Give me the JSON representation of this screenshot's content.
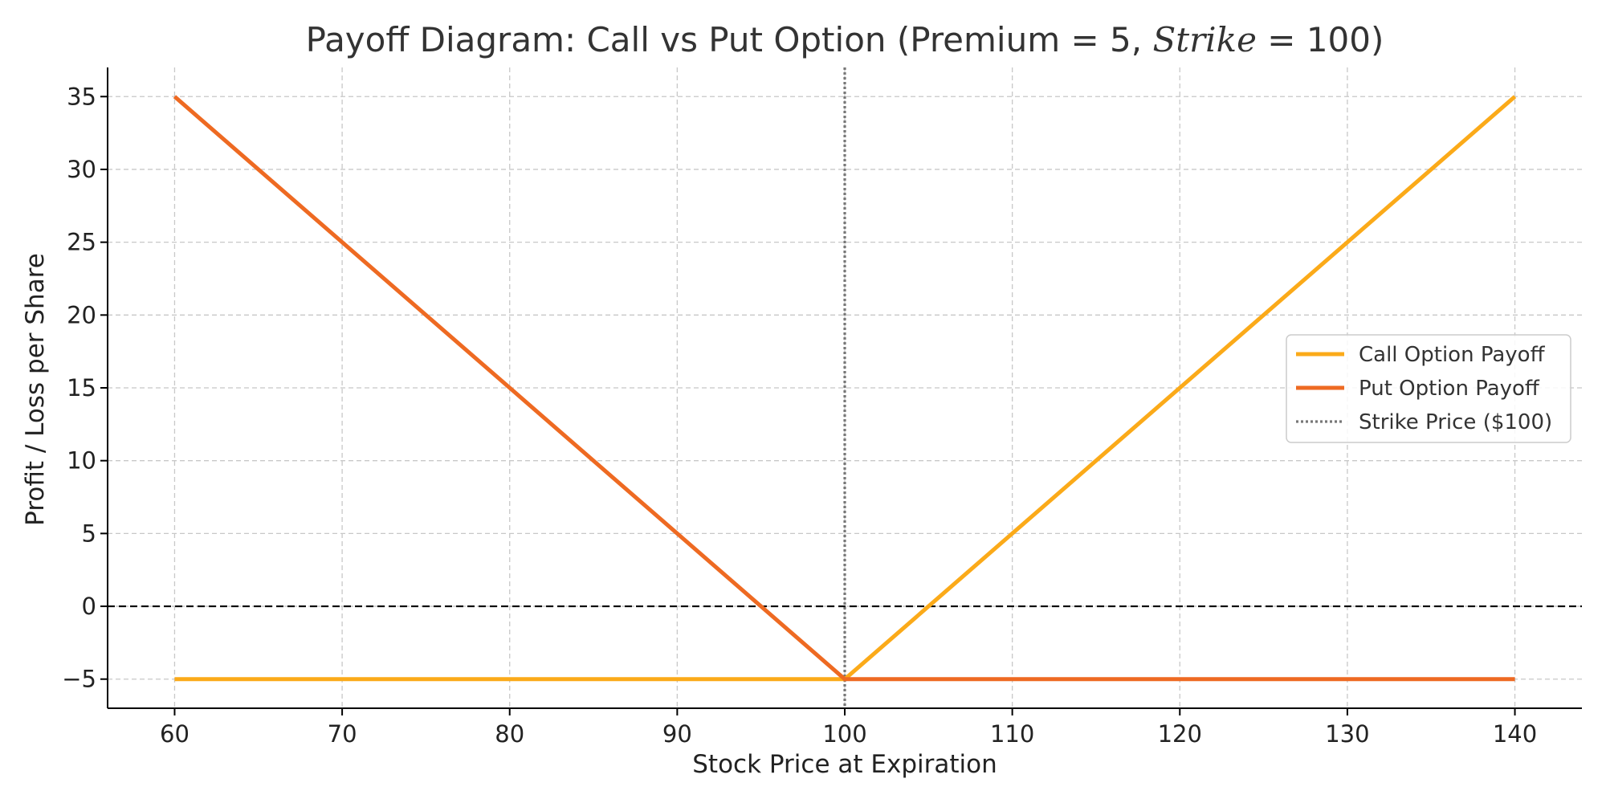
{
  "chart_data": {
    "type": "line",
    "title": "Payoff Diagram: Call vs Put Option (Premium = 5,",
    "title_math": "Strike",
    "title_suffix": " = 100)",
    "xlabel": "Stock Price at Expiration",
    "ylabel": "Profit / Loss per Share",
    "xlim": [
      56,
      144
    ],
    "ylim": [
      -7,
      37
    ],
    "xticks": [
      60,
      70,
      80,
      90,
      100,
      110,
      120,
      130,
      140
    ],
    "yticks": [
      35,
      30,
      25,
      20,
      15,
      10,
      5,
      0,
      -5
    ],
    "ytick_labels": [
      "35",
      "30",
      "25",
      "20",
      "15",
      "10",
      "5",
      "0",
      "−5"
    ],
    "grid": true,
    "legend_position": "center-right",
    "series": [
      {
        "name": "Call Option Payoff",
        "color": "#FBAA19",
        "style": "solid",
        "x": [
          60,
          100,
          140
        ],
        "y": [
          -5,
          -5,
          35
        ]
      },
      {
        "name": "Put Option Payoff",
        "color": "#EE6A22",
        "style": "solid",
        "x": [
          60,
          100,
          140
        ],
        "y": [
          35,
          -5,
          -5
        ]
      }
    ],
    "reference_lines": [
      {
        "name": "Strike Price ($100)",
        "orientation": "vertical",
        "value": 100,
        "color": "#777777",
        "style": "dotted",
        "in_legend": true
      },
      {
        "name": "",
        "orientation": "horizontal",
        "value": 0,
        "color": "#000000",
        "style": "dashed",
        "in_legend": false
      }
    ]
  }
}
